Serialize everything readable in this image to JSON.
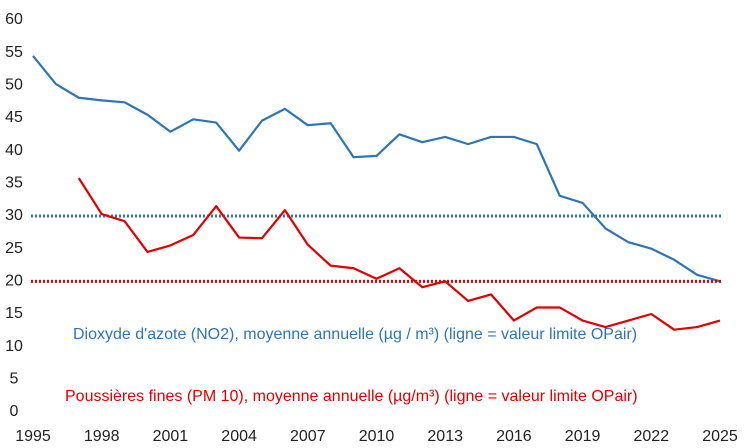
{
  "chart_data": {
    "type": "line",
    "x": [
      1995,
      1996,
      1997,
      1998,
      1999,
      2000,
      2001,
      2002,
      2003,
      2004,
      2005,
      2006,
      2007,
      2008,
      2009,
      2010,
      2011,
      2012,
      2013,
      2014,
      2015,
      2016,
      2017,
      2018,
      2019,
      2020,
      2021,
      2022,
      2023,
      2024,
      2025
    ],
    "series": [
      {
        "name": "Dioxyde d'azote (NO2), moyenne annuelle (µg / m³) (ligne = valeur limite OPair)",
        "color": "#2e75b6",
        "values": [
          54.5,
          50.2,
          48.1,
          47.7,
          47.4,
          45.5,
          42.9,
          44.8,
          44.3,
          40.0,
          44.6,
          46.4,
          43.9,
          44.2,
          39.0,
          39.2,
          42.5,
          41.3,
          42.1,
          41.0,
          42.1,
          42.1,
          41.0,
          33.1,
          32.0,
          28.1,
          26.0,
          25.0,
          23.3,
          21.0,
          20.0
        ],
        "limit": 30
      },
      {
        "name": "Poussières fines (PM 10), moyenne annuelle  (µg/m³) (ligne = valeur limite OPair)",
        "color": "#e00000",
        "values": [
          null,
          null,
          35.8,
          30.3,
          29.2,
          24.5,
          25.5,
          27.1,
          31.5,
          26.7,
          26.6,
          30.9,
          25.6,
          22.4,
          22.0,
          20.4,
          22.0,
          19.1,
          20.0,
          17.0,
          18.0,
          14.0,
          16.0,
          16.0,
          14.0,
          13.0,
          14.0,
          15.0,
          12.6,
          13.0,
          14.0
        ],
        "limit": 20
      }
    ],
    "xlim": [
      1995,
      2025
    ],
    "xticks": [
      1995,
      1998,
      2001,
      2004,
      2007,
      2010,
      2013,
      2016,
      2019,
      2022,
      2025
    ],
    "ylim": [
      0,
      60
    ],
    "yticks": [
      0,
      5,
      10,
      15,
      20,
      25,
      30,
      35,
      40,
      45,
      50,
      55,
      60
    ]
  }
}
